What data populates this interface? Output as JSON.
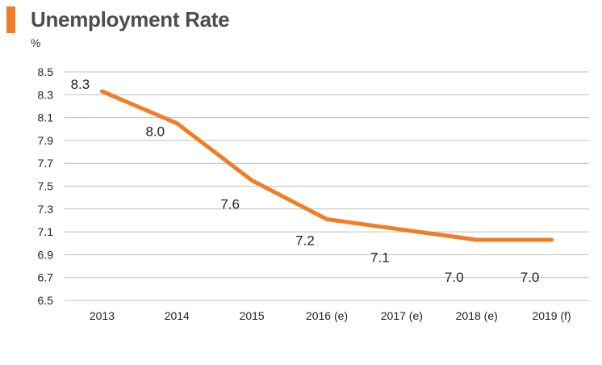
{
  "colors": {
    "accent": "#f07e26",
    "line": "#f07e26",
    "grid": "#bfbfbf",
    "text": "#222222",
    "title": "#4d4d4d"
  },
  "chart_data": {
    "type": "line",
    "title": "Unemployment Rate",
    "ylabel": "%",
    "xlabel": "",
    "categories": [
      "2013",
      "2014",
      "2015",
      "2016 (e)",
      "2017 (e)",
      "2018 (e)",
      "2019 (f)"
    ],
    "series": [
      {
        "values": [
          8.33,
          8.05,
          7.55,
          7.21,
          7.12,
          7.03,
          7.03
        ]
      }
    ],
    "data_labels": [
      "8.3",
      "8.0",
      "7.6",
      "7.2",
      "7.1",
      "7.0",
      "7.0"
    ],
    "yticks": [
      "6.5",
      "6.7",
      "6.9",
      "7.1",
      "7.3",
      "7.5",
      "7.7",
      "7.9",
      "8.1",
      "8.3",
      "8.5"
    ],
    "ylim": [
      6.5,
      8.5
    ],
    "grid": true,
    "legend": "none"
  }
}
